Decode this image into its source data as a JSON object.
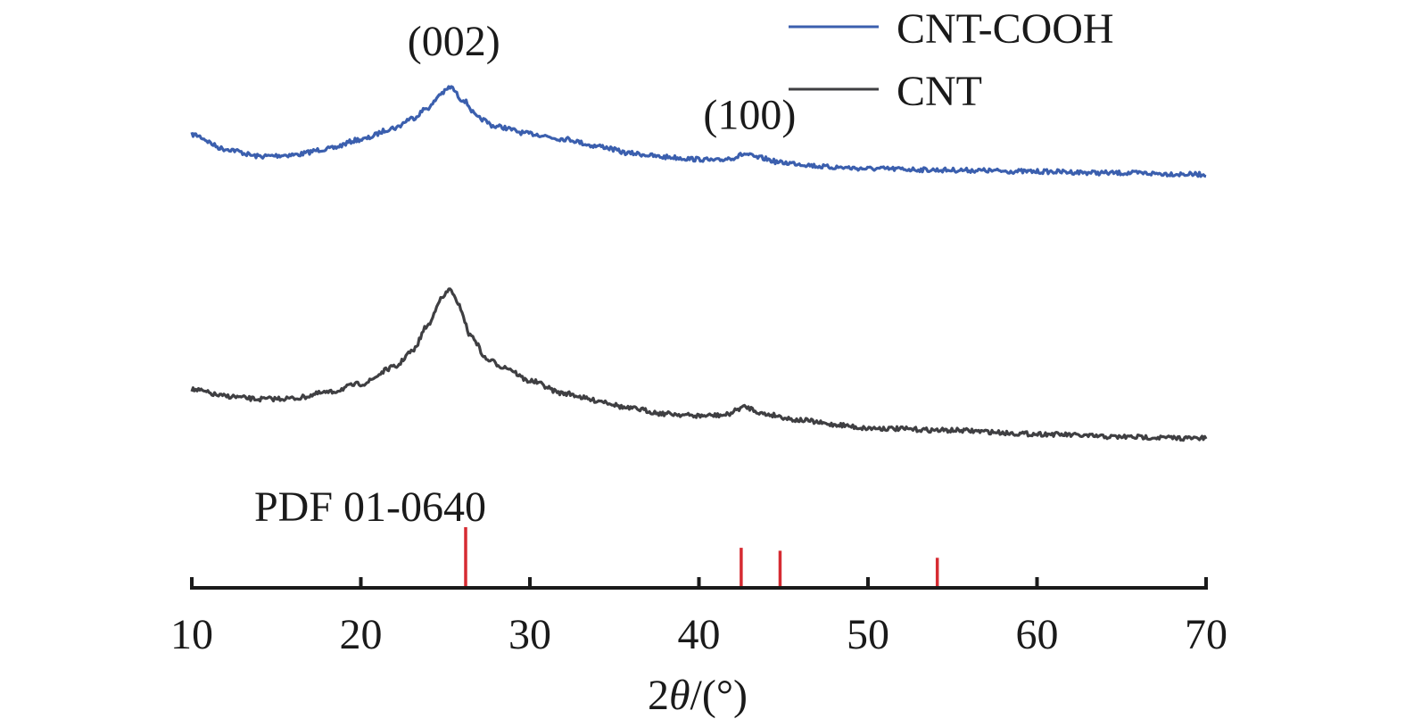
{
  "colors": {
    "cnt_cooh": "#3b5fae",
    "cnt": "#3f3f42",
    "reference": "#d62b32",
    "axis": "#1a1a1a"
  },
  "chart_data": {
    "type": "line",
    "xlabel_prefix": "2",
    "xlabel_symbol": "θ",
    "xlabel_suffix": "/(°)",
    "xlim": [
      10,
      70
    ],
    "xticks": [
      10,
      20,
      30,
      40,
      50,
      60,
      70
    ],
    "ylabel": "",
    "ylim": [
      0,
      100
    ],
    "grid": false,
    "legend_position": "top-right",
    "series": [
      {
        "name": "CNT-COOH",
        "color_key": "cnt_cooh",
        "x": [
          10,
          12,
          14,
          16,
          18,
          20,
          22,
          23,
          24,
          24.8,
          25.3,
          26,
          27,
          28,
          30,
          32,
          34,
          36,
          38,
          40,
          41,
          42,
          42.7,
          43.5,
          45,
          48,
          50,
          55,
          60,
          65,
          70
        ],
        "y": [
          81.5,
          79.5,
          78.5,
          78.7,
          79.5,
          80.8,
          82.4,
          83.7,
          85.2,
          87.2,
          88.0,
          86.3,
          83.7,
          82.6,
          81.6,
          80.9,
          79.9,
          78.9,
          78.4,
          78.1,
          77.9,
          78.3,
          78.8,
          78.3,
          77.6,
          77.0,
          76.8,
          76.6,
          76.4,
          76.2,
          76.0
        ]
      },
      {
        "name": "CNT",
        "color_key": "cnt",
        "x": [
          10,
          12,
          14,
          16,
          18,
          20,
          22,
          23,
          24,
          24.7,
          25.3,
          25.8,
          26.5,
          27.5,
          28.5,
          30,
          32,
          34,
          36,
          38,
          40,
          41.5,
          42.7,
          44,
          46,
          48,
          50,
          55,
          60,
          65,
          70
        ],
        "y": [
          46.4,
          45.5,
          45.1,
          45.2,
          46.0,
          47.2,
          49.5,
          51.6,
          55.3,
          58.8,
          60.2,
          57.9,
          53.8,
          50.5,
          49.5,
          47.6,
          45.9,
          44.9,
          43.8,
          43.1,
          42.8,
          42.9,
          44.0,
          43.0,
          42.2,
          41.6,
          41.1,
          40.8,
          40.3,
          39.9,
          39.7
        ]
      }
    ],
    "reference": {
      "name": "PDF 01-0640",
      "positions": [
        26.2,
        42.5,
        44.8,
        54.1
      ],
      "intensities": [
        100,
        65,
        60,
        48
      ]
    },
    "annotations": [
      {
        "text": "(002)",
        "x": 25.5,
        "y": 92.4
      },
      {
        "text": "(100)",
        "x": 43.0,
        "y": 82.3
      }
    ]
  }
}
